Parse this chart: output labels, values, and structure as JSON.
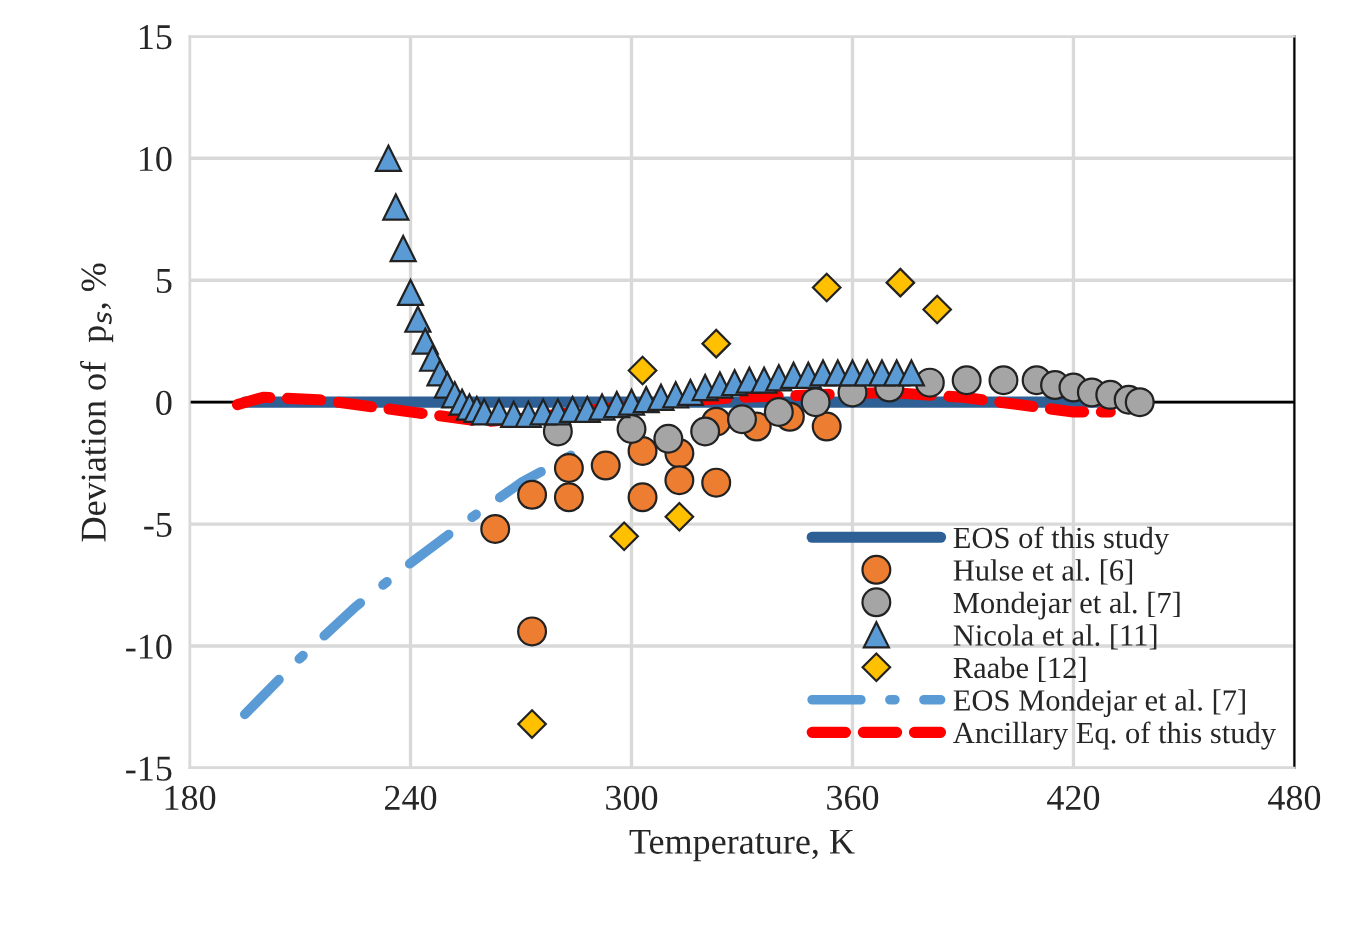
{
  "chart_data": {
    "type": "scatter",
    "xlabel": "Temperature, K",
    "ylabel": "Deviation of  p$_{s}$, %",
    "xlim": [
      180,
      480
    ],
    "ylim": [
      -15,
      15
    ],
    "xticks": [
      180,
      240,
      300,
      360,
      420,
      480
    ],
    "yticks": [
      -15,
      -10,
      -5,
      0,
      5,
      10,
      15
    ],
    "grid": true,
    "legend": "lower right",
    "ref_lines": [
      {
        "axis": "y",
        "value": 0,
        "color": "#000000"
      }
    ],
    "series": [
      {
        "name": "EOS of this study",
        "type": "line",
        "color": "#2E6096",
        "line_style": "solid",
        "marker": "none",
        "x": [
          195,
          435
        ],
        "values": [
          0,
          0
        ]
      },
      {
        "name": "Hulse et al. [6]",
        "color": "#ED7D31",
        "marker": "circle",
        "x": [
          263,
          273,
          273,
          283,
          283,
          293,
          303,
          303,
          313,
          313,
          323,
          323,
          334,
          343,
          353
        ],
        "values": [
          -5.2,
          -9.4,
          -3.8,
          -2.7,
          -3.9,
          -2.6,
          -2.0,
          -3.9,
          -2.1,
          -3.2,
          -0.8,
          -3.3,
          -1.0,
          -0.6,
          -1.0
        ]
      },
      {
        "name": "Mondejar et al. [7]",
        "color": "#A5A5A5",
        "marker": "circle",
        "x": [
          280,
          300,
          310,
          320,
          330,
          340,
          350,
          360,
          370,
          381,
          391,
          401,
          410,
          415,
          420,
          425,
          430,
          435,
          438
        ],
        "values": [
          -1.2,
          -1.1,
          -1.5,
          -1.2,
          -0.7,
          -0.4,
          0.0,
          0.4,
          0.6,
          0.8,
          0.9,
          0.9,
          0.9,
          0.7,
          0.6,
          0.4,
          0.3,
          0.1,
          0.0
        ]
      },
      {
        "name": "Nicola et al. [11]",
        "color": "#5B9BD5",
        "marker": "triangle",
        "x": [
          234,
          236,
          238,
          240,
          242,
          244,
          246,
          248,
          250,
          252,
          254,
          256,
          258,
          260,
          264,
          268,
          272,
          276,
          280,
          284,
          288,
          292,
          296,
          300,
          304,
          308,
          312,
          316,
          320,
          324,
          328,
          332,
          336,
          340,
          344,
          348,
          352,
          356,
          360,
          364,
          368,
          372,
          376
        ],
        "values": [
          10,
          8,
          6.3,
          4.5,
          3.4,
          2.5,
          1.8,
          1.2,
          0.7,
          0.3,
          0.0,
          -0.2,
          -0.3,
          -0.4,
          -0.4,
          -0.5,
          -0.5,
          -0.4,
          -0.4,
          -0.3,
          -0.3,
          -0.2,
          -0.1,
          0.0,
          0.1,
          0.2,
          0.3,
          0.4,
          0.6,
          0.7,
          0.8,
          0.9,
          0.9,
          1.0,
          1.1,
          1.1,
          1.2,
          1.2,
          1.2,
          1.2,
          1.2,
          1.2,
          1.2
        ]
      },
      {
        "name": "Raabe [12]",
        "color": "#FFC000",
        "marker": "diamond",
        "x": [
          273,
          298,
          303,
          313,
          323,
          353,
          373,
          383
        ],
        "values": [
          -13.2,
          -5.5,
          1.3,
          -4.7,
          2.4,
          4.7,
          4.9,
          3.8
        ]
      },
      {
        "name": "EOS Mondejar et al. [7]",
        "type": "line",
        "color": "#5B9BD5",
        "line_style": "dashdot",
        "marker": "none",
        "x": [
          195,
          210,
          225,
          240,
          255,
          270,
          287
        ],
        "values": [
          -12.8,
          -10.5,
          -8.4,
          -6.6,
          -4.9,
          -3.3,
          -1.9
        ]
      },
      {
        "name": "Ancillary Eq. of this study",
        "type": "line",
        "color": "#FF0000",
        "line_style": "dashed",
        "marker": "none",
        "x": [
          193,
          200,
          215,
          230,
          245,
          260,
          275,
          290,
          310,
          330,
          350,
          370,
          390,
          405,
          420,
          430
        ],
        "values": [
          -0.1,
          0.2,
          0.1,
          -0.2,
          -0.5,
          -0.8,
          -0.6,
          -0.3,
          0.0,
          0.2,
          0.3,
          0.4,
          0.2,
          -0.1,
          -0.4,
          -0.4
        ]
      }
    ]
  }
}
